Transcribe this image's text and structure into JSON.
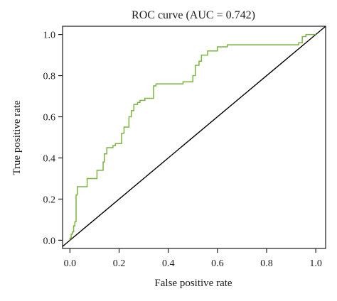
{
  "chart_data": {
    "type": "line",
    "title": "ROC curve (AUC = 0.742)",
    "xlabel": "False positive rate",
    "ylabel": "True positive rate",
    "xlim": [
      -0.03,
      1.04
    ],
    "ylim": [
      -0.04,
      1.04
    ],
    "xticks": [
      0.0,
      0.2,
      0.4,
      0.6,
      0.8,
      1.0
    ],
    "yticks": [
      0.0,
      0.2,
      0.4,
      0.6,
      0.8,
      1.0
    ],
    "xtick_labels": [
      "0.0",
      "0.2",
      "0.4",
      "0.6",
      "0.8",
      "1.0"
    ],
    "ytick_labels": [
      "0.0",
      "0.2",
      "0.4",
      "0.6",
      "0.8",
      "1.0"
    ],
    "grid": false,
    "series": [
      {
        "color": "#7cb342",
        "x": [
          0.0,
          0.0,
          0.005,
          0.005,
          0.01,
          0.01,
          0.015,
          0.015,
          0.02,
          0.02,
          0.025,
          0.025,
          0.03,
          0.03,
          0.07,
          0.07,
          0.11,
          0.11,
          0.135,
          0.135,
          0.14,
          0.14,
          0.15,
          0.15,
          0.175,
          0.175,
          0.185,
          0.185,
          0.21,
          0.21,
          0.22,
          0.22,
          0.24,
          0.24,
          0.25,
          0.25,
          0.26,
          0.26,
          0.275,
          0.275,
          0.285,
          0.285,
          0.305,
          0.305,
          0.34,
          0.34,
          0.35,
          0.35,
          0.39,
          0.39,
          0.46,
          0.46,
          0.5,
          0.5,
          0.51,
          0.51,
          0.525,
          0.525,
          0.535,
          0.535,
          0.56,
          0.56,
          0.6,
          0.6,
          0.64,
          0.64,
          0.93,
          0.93,
          0.945,
          0.945,
          0.96,
          0.96,
          1.0
        ],
        "y": [
          0.0,
          0.01,
          0.01,
          0.03,
          0.03,
          0.04,
          0.04,
          0.07,
          0.07,
          0.09,
          0.09,
          0.22,
          0.22,
          0.26,
          0.26,
          0.3,
          0.3,
          0.34,
          0.34,
          0.38,
          0.38,
          0.42,
          0.42,
          0.45,
          0.45,
          0.46,
          0.46,
          0.47,
          0.47,
          0.52,
          0.52,
          0.55,
          0.55,
          0.6,
          0.6,
          0.63,
          0.63,
          0.66,
          0.66,
          0.67,
          0.67,
          0.68,
          0.68,
          0.69,
          0.69,
          0.75,
          0.75,
          0.76,
          0.76,
          0.76,
          0.76,
          0.77,
          0.77,
          0.8,
          0.8,
          0.85,
          0.85,
          0.87,
          0.87,
          0.9,
          0.9,
          0.92,
          0.92,
          0.94,
          0.94,
          0.95,
          0.95,
          0.96,
          0.96,
          0.99,
          0.99,
          1.0,
          1.0
        ]
      }
    ],
    "reference_line": {
      "color": "#000000",
      "x": [
        -0.03,
        1.04
      ],
      "y": [
        -0.03,
        1.04
      ]
    }
  }
}
